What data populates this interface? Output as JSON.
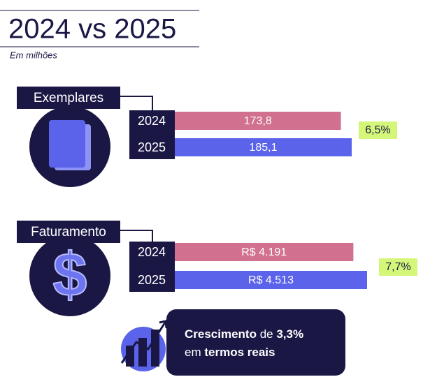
{
  "title": "2024 vs 2025",
  "subtitle": "Em milhões",
  "chart_data": [
    {
      "type": "bar",
      "title": "Exemplares",
      "categories": [
        "2024",
        "2025"
      ],
      "values": [
        173.8,
        185.1
      ],
      "value_labels": [
        "173,8",
        "185,1"
      ],
      "colors": [
        "#d1708f",
        "#5b63ea"
      ],
      "annotation": "6,5%"
    },
    {
      "type": "bar",
      "title": "Faturamento",
      "categories": [
        "2024",
        "2025"
      ],
      "values": [
        4191,
        4513
      ],
      "value_labels": [
        "R$ 4.191",
        "R$ 4.513"
      ],
      "colors": [
        "#d1708f",
        "#5b63ea"
      ],
      "annotation": "7,7%"
    }
  ],
  "callout": {
    "line1": [
      "Crescimento",
      " de ",
      "3,3%"
    ],
    "line2": [
      "em ",
      "termos reais"
    ]
  }
}
